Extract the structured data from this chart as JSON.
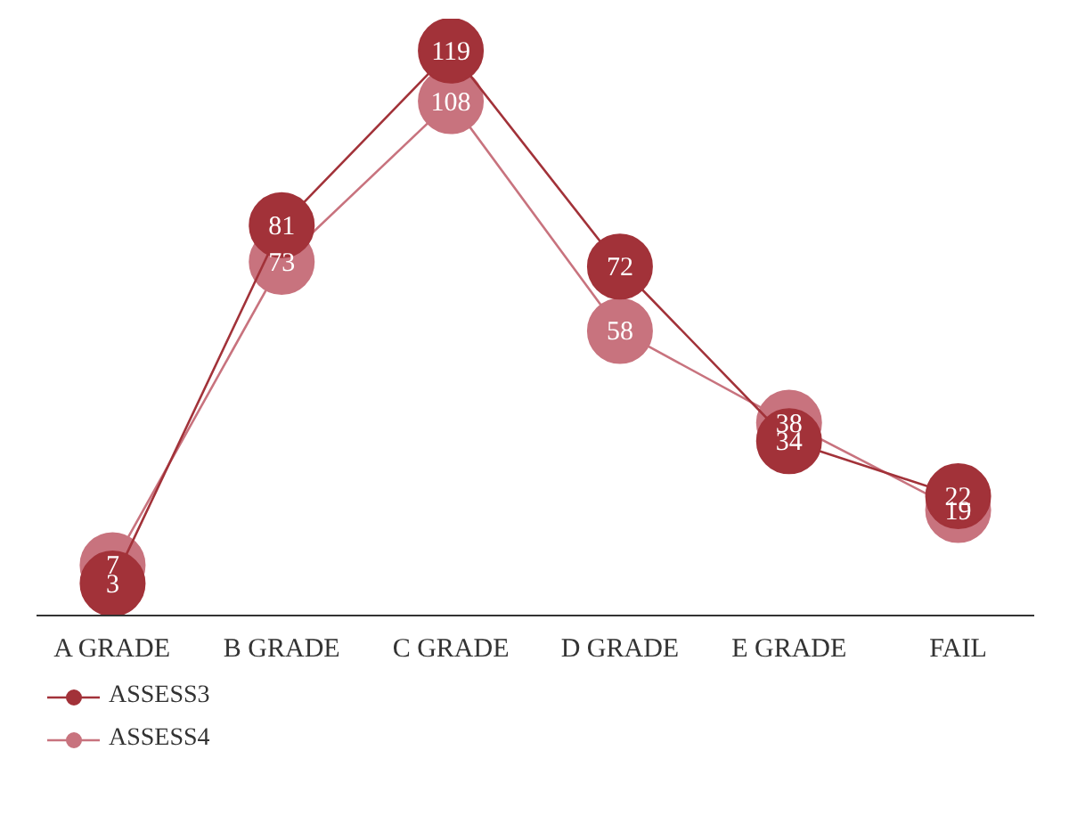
{
  "chart_data": {
    "type": "line",
    "categories": [
      "A GRADE",
      "B GRADE",
      "C GRADE",
      "D GRADE",
      "E GRADE",
      "FAIL"
    ],
    "series": [
      {
        "name": "ASSESS3",
        "color": "#a23239",
        "values": [
          3,
          81,
          119,
          72,
          34,
          22
        ]
      },
      {
        "name": "ASSESS4",
        "color": "#c8737e",
        "values": [
          7,
          73,
          108,
          58,
          38,
          19
        ]
      }
    ],
    "tick_labels": "x",
    "marker": "circle",
    "line_style": "solid",
    "data_labels": true,
    "legend": "bottom left",
    "grid": false
  }
}
